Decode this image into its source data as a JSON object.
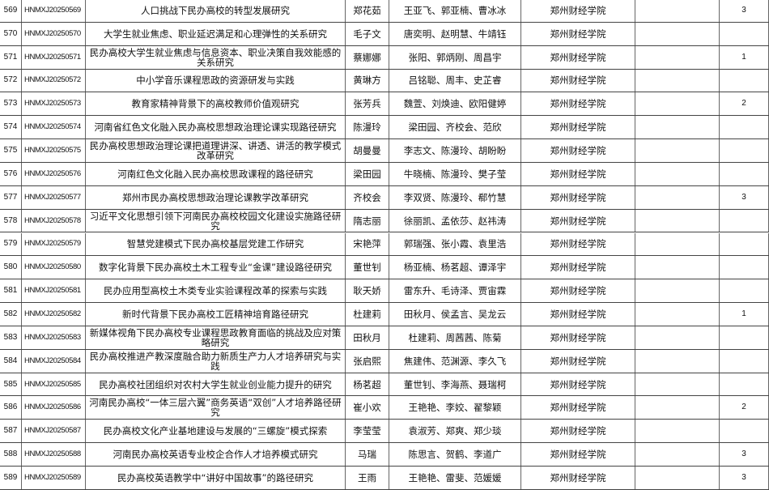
{
  "rows": [
    {
      "no": "569",
      "code": "HNMXJ20250569",
      "title": "人口挑战下民办高校的转型发展研究",
      "leader": "郑花茹",
      "members": "王亚飞、郭亚楠、曹冰冰",
      "school": "郑州财经学院",
      "note": "",
      "rank": "3"
    },
    {
      "no": "570",
      "code": "HNMXJ20250570",
      "title": "大学生就业焦虑、职业延迟满足和心理弹性的关系研究",
      "leader": "毛子文",
      "members": "唐奕明、赵明慧、牛靖钰",
      "school": "郑州财经学院",
      "note": "",
      "rank": ""
    },
    {
      "no": "571",
      "code": "HNMXJ20250571",
      "title": "民办高校大学生就业焦虑与信息资本、职业决策自我效能感的关系研究",
      "leader": "蔡娜娜",
      "members": "张阳、郭炳刚、周昌宇",
      "school": "郑州财经学院",
      "note": "",
      "rank": "1"
    },
    {
      "no": "572",
      "code": "HNMXJ20250572",
      "title": "中小学音乐课程思政的资源研发与实践",
      "leader": "黄琳方",
      "members": "吕铭聪、周丰、史芷睿",
      "school": "郑州财经学院",
      "note": "",
      "rank": ""
    },
    {
      "no": "573",
      "code": "HNMXJ20250573",
      "title": "教育家精神背景下的高校教师价值观研究",
      "leader": "张芳兵",
      "members": "魏萱、刘焕迪、欧阳健婷",
      "school": "郑州财经学院",
      "note": "",
      "rank": "2"
    },
    {
      "no": "574",
      "code": "HNMXJ20250574",
      "title": "河南省红色文化融入民办高校思想政治理论课实现路径研究",
      "leader": "陈漫玲",
      "members": "梁田园、齐校会、范欣",
      "school": "郑州财经学院",
      "note": "",
      "rank": ""
    },
    {
      "no": "575",
      "code": "HNMXJ20250575",
      "title": "民办高校思想政治理论课把道理讲深、讲透、讲活的教学模式改革研究",
      "leader": "胡曼曼",
      "members": "李志文、陈漫玲、胡盼盼",
      "school": "郑州财经学院",
      "note": "",
      "rank": ""
    },
    {
      "no": "576",
      "code": "HNMXJ20250576",
      "title": "河南红色文化融入民办高校思政课程的路径研究",
      "leader": "梁田园",
      "members": "牛晓楠、陈漫玲、樊子莹",
      "school": "郑州财经学院",
      "note": "",
      "rank": ""
    },
    {
      "no": "577",
      "code": "HNMXJ20250577",
      "title": "郑州市民办高校思想政治理论课教学改革研究",
      "leader": "齐校会",
      "members": "李双贤、陈漫玲、郗竹慧",
      "school": "郑州财经学院",
      "note": "",
      "rank": "3"
    },
    {
      "no": "578",
      "code": "HNMXJ20250578",
      "title": "习近平文化思想引领下河南民办高校校园文化建设实施路径研究",
      "leader": "隋志丽",
      "members": "徐丽凯、孟依莎、赵祎涛",
      "school": "郑州财经学院",
      "note": "",
      "rank": ""
    },
    {
      "no": "579",
      "code": "HNMXJ20250579",
      "title": "智慧党建模式下民办高校基层党建工作研究",
      "leader": "宋艳萍",
      "members": "郭瑞强、张小霞、袁里浩",
      "school": "郑州财经学院",
      "note": "",
      "rank": ""
    },
    {
      "no": "580",
      "code": "HNMXJ20250580",
      "title": "数字化背景下民办高校土木工程专业“金课”建设路径研究",
      "leader": "董世钊",
      "members": "杨亚楠、杨茗超、谭泽宇",
      "school": "郑州财经学院",
      "note": "",
      "rank": ""
    },
    {
      "no": "581",
      "code": "HNMXJ20250581",
      "title": "民办应用型高校土木类专业实验课程改革的探索与实践",
      "leader": "耿天娇",
      "members": "雷东升、毛诗泽、贾宙霖",
      "school": "郑州财经学院",
      "note": "",
      "rank": ""
    },
    {
      "no": "582",
      "code": "HNMXJ20250582",
      "title": "新时代背景下民办高校工匠精神培育路径研究",
      "leader": "杜建莉",
      "members": "田秋月、侯孟言、吴龙云",
      "school": "郑州财经学院",
      "note": "",
      "rank": "1"
    },
    {
      "no": "583",
      "code": "HNMXJ20250583",
      "title": "新媒体视角下民办高校专业课程思政教育面临的挑战及应对策略研究",
      "leader": "田秋月",
      "members": "杜建莉、周茜茜、陈菊",
      "school": "郑州财经学院",
      "note": "",
      "rank": ""
    },
    {
      "no": "584",
      "code": "HNMXJ20250584",
      "title": "民办高校推进产教深度融合助力新质生产力人才培养研究与实践",
      "leader": "张启熙",
      "members": "焦建伟、范渊源、李久飞",
      "school": "郑州财经学院",
      "note": "",
      "rank": ""
    },
    {
      "no": "585",
      "code": "HNMXJ20250585",
      "title": "民办高校社团组织对农村大学生就业创业能力提升的研究",
      "leader": "杨茗超",
      "members": "董世钊、李海燕、聂瑞柯",
      "school": "郑州财经学院",
      "note": "",
      "rank": ""
    },
    {
      "no": "586",
      "code": "HNMXJ20250586",
      "title": "河南民办高校“一体三层六翼”商务英语“双创”人才培养路径研究",
      "leader": "崔小欢",
      "members": "王艳艳、李姣、翟黎颖",
      "school": "郑州财经学院",
      "note": "",
      "rank": "2"
    },
    {
      "no": "587",
      "code": "HNMXJ20250587",
      "title": "民办高校文化产业基地建设与发展的“三螺旋”模式探索",
      "leader": "李莹莹",
      "members": "袁淑芳、郑爽、郑少琰",
      "school": "郑州财经学院",
      "note": "",
      "rank": ""
    },
    {
      "no": "588",
      "code": "HNMXJ20250588",
      "title": "河南民办高校英语专业校企合作人才培养模式研究",
      "leader": "马瑞",
      "members": "陈思言、贺鹤、李道广",
      "school": "郑州财经学院",
      "note": "",
      "rank": "3"
    },
    {
      "no": "589",
      "code": "HNMXJ20250589",
      "title": "民办高校英语教学中“讲好中国故事”的路径研究",
      "leader": "王雨",
      "members": "王艳艳、雷斐、范媛媛",
      "school": "郑州财经学院",
      "note": "",
      "rank": "3"
    }
  ]
}
